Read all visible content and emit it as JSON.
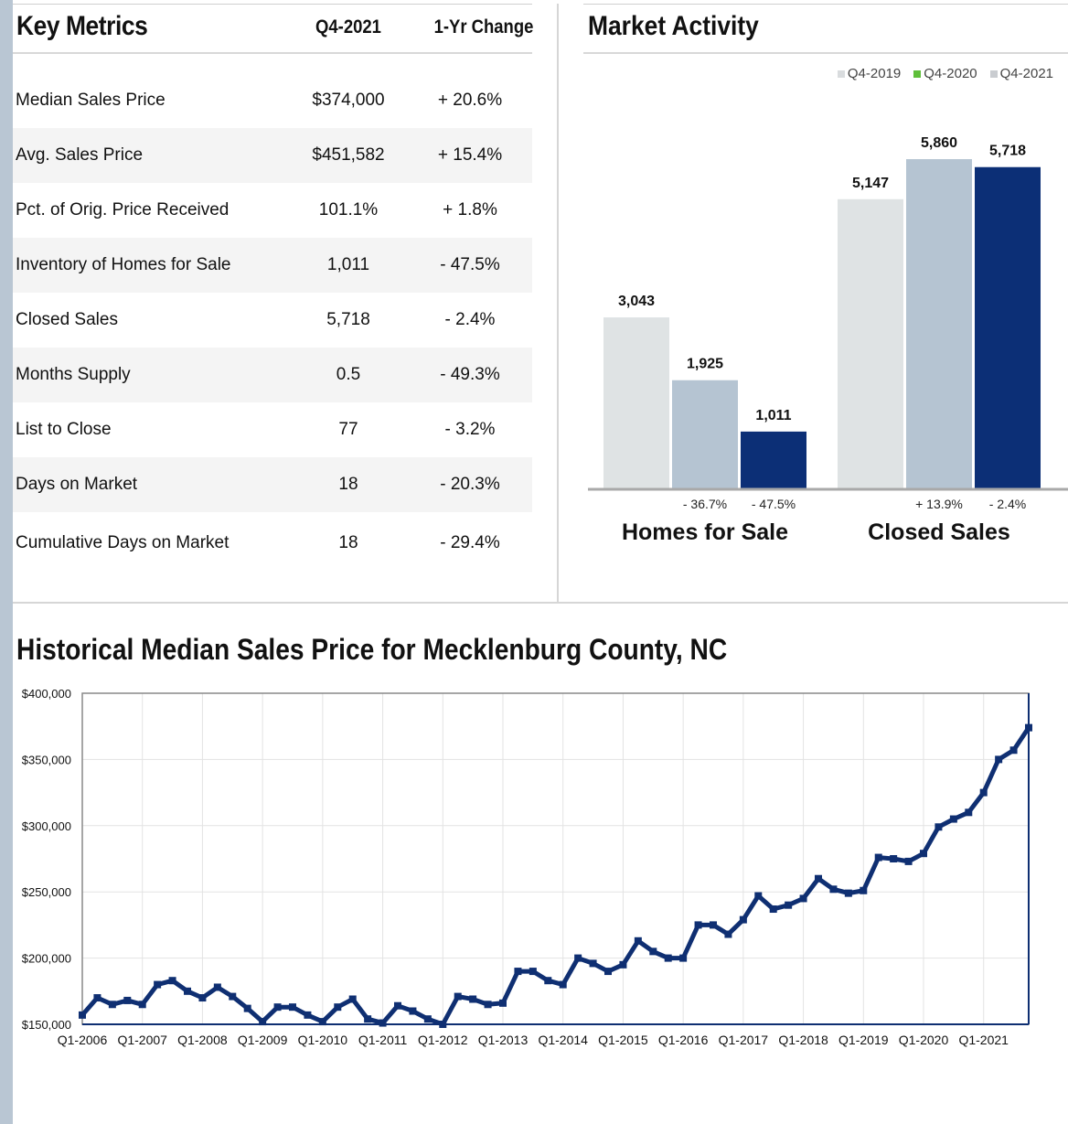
{
  "key_metrics": {
    "title": "Key Metrics",
    "col1": "Q4-2021",
    "col2": "1-Yr Change",
    "rows": [
      {
        "label": "Median Sales Price",
        "value": "$374,000",
        "change": "+ 20.6%"
      },
      {
        "label": "Avg. Sales Price",
        "value": "$451,582",
        "change": "+ 15.4%"
      },
      {
        "label": "Pct. of Orig. Price Received",
        "value": "101.1%",
        "change": "+ 1.8%"
      },
      {
        "label": "Inventory of Homes for Sale",
        "value": "1,011",
        "change": "- 47.5%"
      },
      {
        "label": "Closed Sales",
        "value": "5,718",
        "change": "- 2.4%"
      },
      {
        "label": "Months Supply",
        "value": "0.5",
        "change": "- 49.3%"
      },
      {
        "label": "List to Close",
        "value": "77",
        "change": "- 3.2%"
      },
      {
        "label": "Days on Market",
        "value": "18",
        "change": "- 20.3%"
      },
      {
        "label": "Cumulative Days on Market",
        "value": "18",
        "change": "- 29.4%"
      }
    ]
  },
  "market_activity": {
    "title": "Market Activity",
    "legend": [
      {
        "label": "Q4-2019",
        "color": "#d9dcde"
      },
      {
        "label": "Q4-2020",
        "color": "#5fbf3a"
      },
      {
        "label": "Q4-2021",
        "color": "#c9ccd0"
      }
    ]
  },
  "historical": {
    "title": "Historical Median Sales Price for Mecklenburg County, NC"
  },
  "chart_data": [
    {
      "type": "bar",
      "categories": [
        "Homes for Sale",
        "Closed Sales"
      ],
      "series": [
        {
          "name": "Q4-2019",
          "values": [
            3043,
            5147
          ],
          "labels": [
            "3,043",
            "5,147"
          ],
          "color": "#dfe3e4"
        },
        {
          "name": "Q4-2020",
          "values": [
            1925,
            5860
          ],
          "labels": [
            "1,925",
            "5,860"
          ],
          "color": "#b5c4d2"
        },
        {
          "name": "Q4-2021",
          "values": [
            1011,
            5718
          ],
          "labels": [
            "1,011",
            "5,718"
          ],
          "color": "#0c2f76"
        }
      ],
      "changes": [
        [
          "- 36.7%",
          "- 47.5%"
        ],
        [
          "+ 13.9%",
          "- 2.4%"
        ]
      ],
      "legend_position": "top-right"
    },
    {
      "type": "line",
      "title": "Historical Median Sales Price for Mecklenburg County, NC",
      "x_tick_labels": [
        "Q1-2006",
        "Q1-2007",
        "Q1-2008",
        "Q1-2009",
        "Q1-2010",
        "Q1-2011",
        "Q1-2012",
        "Q1-2013",
        "Q1-2014",
        "Q1-2015",
        "Q1-2016",
        "Q1-2017",
        "Q1-2018",
        "Q1-2019",
        "Q1-2020",
        "Q1-2021"
      ],
      "y_tick_labels": [
        "$150,000",
        "$200,000",
        "$250,000",
        "$300,000",
        "$350,000",
        "$400,000"
      ],
      "ylim": [
        150000,
        400000
      ],
      "grid": true,
      "series": [
        {
          "color": "#0f2f72",
          "values": [
            157000,
            170000,
            165000,
            168000,
            165000,
            180000,
            183000,
            175000,
            170000,
            178000,
            171000,
            162000,
            152000,
            163000,
            163000,
            157000,
            152000,
            163000,
            169000,
            154000,
            151000,
            164000,
            160000,
            154000,
            150000,
            171000,
            169000,
            165000,
            166000,
            190000,
            190000,
            183000,
            180000,
            200000,
            196000,
            190000,
            195000,
            213000,
            205000,
            200000,
            200000,
            225000,
            225000,
            218000,
            229000,
            247000,
            237000,
            240000,
            245000,
            260000,
            252000,
            249000,
            251000,
            276000,
            275000,
            273000,
            279000,
            299000,
            305000,
            310000,
            325000,
            350000,
            357000,
            374000
          ]
        }
      ]
    }
  ]
}
